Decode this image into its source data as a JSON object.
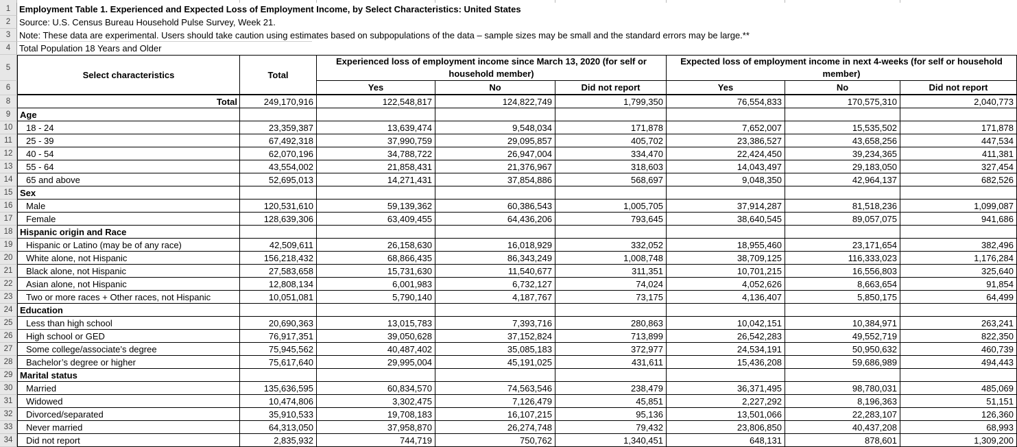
{
  "colors": {
    "table_border": "#000000",
    "gutter_bg": "#e7e7e7",
    "gutter_border": "#9e9e9e"
  },
  "sheet": {
    "meta_rows": [
      {
        "num": "1",
        "text": "Employment Table 1. Experienced and Expected Loss of Employment Income, by Select Characteristics: United States",
        "bold": true
      },
      {
        "num": "2",
        "text": "Source: U.S. Census Bureau Household Pulse Survey, Week 21.",
        "bold": false
      },
      {
        "num": "3",
        "text": "Note: These data are experimental. Users should take caution using estimates based on subpopulations of the data – sample sizes may be small and the standard errors may be large.**",
        "bold": false
      },
      {
        "num": "4",
        "text": "Total Population 18 Years and Older",
        "bold": false
      }
    ],
    "header": {
      "row5_num": "5",
      "row6_num": "6",
      "select_characteristics": "Select characteristics",
      "total": "Total",
      "group1": "Experienced loss of employment income since March 13, 2020 (for self or household member)",
      "group2": "Expected loss of employment income in next 4-weeks (for self or household member)",
      "sub": [
        "Yes",
        "No",
        "Did not report"
      ]
    },
    "rows": [
      {
        "num": "8",
        "label": "Total",
        "type": "total",
        "values": [
          "249,170,916",
          "122,548,817",
          "124,822,749",
          "1,799,350",
          "76,554,833",
          "170,575,310",
          "2,040,773"
        ]
      },
      {
        "num": "9",
        "label": "Age",
        "type": "section",
        "values": [
          "",
          "",
          "",
          "",
          "",
          "",
          ""
        ]
      },
      {
        "num": "10",
        "label": "18 - 24",
        "type": "data",
        "values": [
          "23,359,387",
          "13,639,474",
          "9,548,034",
          "171,878",
          "7,652,007",
          "15,535,502",
          "171,878"
        ]
      },
      {
        "num": "11",
        "label": "25 - 39",
        "type": "data",
        "values": [
          "67,492,318",
          "37,990,759",
          "29,095,857",
          "405,702",
          "23,386,527",
          "43,658,256",
          "447,534"
        ]
      },
      {
        "num": "12",
        "label": "40 - 54",
        "type": "data",
        "values": [
          "62,070,196",
          "34,788,722",
          "26,947,004",
          "334,470",
          "22,424,450",
          "39,234,365",
          "411,381"
        ]
      },
      {
        "num": "13",
        "label": "55 - 64",
        "type": "data",
        "values": [
          "43,554,002",
          "21,858,431",
          "21,376,967",
          "318,603",
          "14,043,497",
          "29,183,050",
          "327,454"
        ]
      },
      {
        "num": "14",
        "label": "65 and above",
        "type": "data",
        "values": [
          "52,695,013",
          "14,271,431",
          "37,854,886",
          "568,697",
          "9,048,350",
          "42,964,137",
          "682,526"
        ]
      },
      {
        "num": "15",
        "label": "Sex",
        "type": "section",
        "values": [
          "",
          "",
          "",
          "",
          "",
          "",
          ""
        ]
      },
      {
        "num": "16",
        "label": "Male",
        "type": "data",
        "values": [
          "120,531,610",
          "59,139,362",
          "60,386,543",
          "1,005,705",
          "37,914,287",
          "81,518,236",
          "1,099,087"
        ]
      },
      {
        "num": "17",
        "label": "Female",
        "type": "data",
        "values": [
          "128,639,306",
          "63,409,455",
          "64,436,206",
          "793,645",
          "38,640,545",
          "89,057,075",
          "941,686"
        ]
      },
      {
        "num": "18",
        "label": "Hispanic origin and Race",
        "type": "section",
        "values": [
          "",
          "",
          "",
          "",
          "",
          "",
          ""
        ]
      },
      {
        "num": "19",
        "label": "Hispanic or Latino (may be of any race)",
        "type": "data",
        "values": [
          "42,509,611",
          "26,158,630",
          "16,018,929",
          "332,052",
          "18,955,460",
          "23,171,654",
          "382,496"
        ]
      },
      {
        "num": "20",
        "label": "White alone, not Hispanic",
        "type": "data",
        "values": [
          "156,218,432",
          "68,866,435",
          "86,343,249",
          "1,008,748",
          "38,709,125",
          "116,333,023",
          "1,176,284"
        ]
      },
      {
        "num": "21",
        "label": "Black alone, not Hispanic",
        "type": "data",
        "values": [
          "27,583,658",
          "15,731,630",
          "11,540,677",
          "311,351",
          "10,701,215",
          "16,556,803",
          "325,640"
        ]
      },
      {
        "num": "22",
        "label": "Asian alone, not Hispanic",
        "type": "data",
        "values": [
          "12,808,134",
          "6,001,983",
          "6,732,127",
          "74,024",
          "4,052,626",
          "8,663,654",
          "91,854"
        ]
      },
      {
        "num": "23",
        "label": "Two or more races + Other races, not Hispanic",
        "type": "data",
        "values": [
          "10,051,081",
          "5,790,140",
          "4,187,767",
          "73,175",
          "4,136,407",
          "5,850,175",
          "64,499"
        ]
      },
      {
        "num": "24",
        "label": "Education",
        "type": "section",
        "values": [
          "",
          "",
          "",
          "",
          "",
          "",
          ""
        ]
      },
      {
        "num": "25",
        "label": "Less than high school",
        "type": "data",
        "values": [
          "20,690,363",
          "13,015,783",
          "7,393,716",
          "280,863",
          "10,042,151",
          "10,384,971",
          "263,241"
        ]
      },
      {
        "num": "26",
        "label": "High school or GED",
        "type": "data",
        "values": [
          "76,917,351",
          "39,050,628",
          "37,152,824",
          "713,899",
          "26,542,283",
          "49,552,719",
          "822,350"
        ]
      },
      {
        "num": "27",
        "label": "Some college/associate’s degree",
        "type": "data",
        "values": [
          "75,945,562",
          "40,487,402",
          "35,085,183",
          "372,977",
          "24,534,191",
          "50,950,632",
          "460,739"
        ]
      },
      {
        "num": "28",
        "label": "Bachelor’s degree or higher",
        "type": "data",
        "values": [
          "75,617,640",
          "29,995,004",
          "45,191,025",
          "431,611",
          "15,436,208",
          "59,686,989",
          "494,443"
        ]
      },
      {
        "num": "29",
        "label": "Marital status",
        "type": "section",
        "values": [
          "",
          "",
          "",
          "",
          "",
          "",
          ""
        ]
      },
      {
        "num": "30",
        "label": "Married",
        "type": "data",
        "values": [
          "135,636,595",
          "60,834,570",
          "74,563,546",
          "238,479",
          "36,371,495",
          "98,780,031",
          "485,069"
        ]
      },
      {
        "num": "31",
        "label": "Widowed",
        "type": "data",
        "values": [
          "10,474,806",
          "3,302,475",
          "7,126,479",
          "45,851",
          "2,227,292",
          "8,196,363",
          "51,151"
        ]
      },
      {
        "num": "32",
        "label": "Divorced/separated",
        "type": "data",
        "values": [
          "35,910,533",
          "19,708,183",
          "16,107,215",
          "95,136",
          "13,501,066",
          "22,283,107",
          "126,360"
        ]
      },
      {
        "num": "33",
        "label": "Never married",
        "type": "data",
        "values": [
          "64,313,050",
          "37,958,870",
          "26,274,748",
          "79,432",
          "23,806,850",
          "40,437,208",
          "68,993"
        ]
      },
      {
        "num": "34",
        "label": "Did not report",
        "type": "data",
        "values": [
          "2,835,932",
          "744,719",
          "750,762",
          "1,340,451",
          "648,131",
          "878,601",
          "1,309,200"
        ]
      }
    ]
  }
}
